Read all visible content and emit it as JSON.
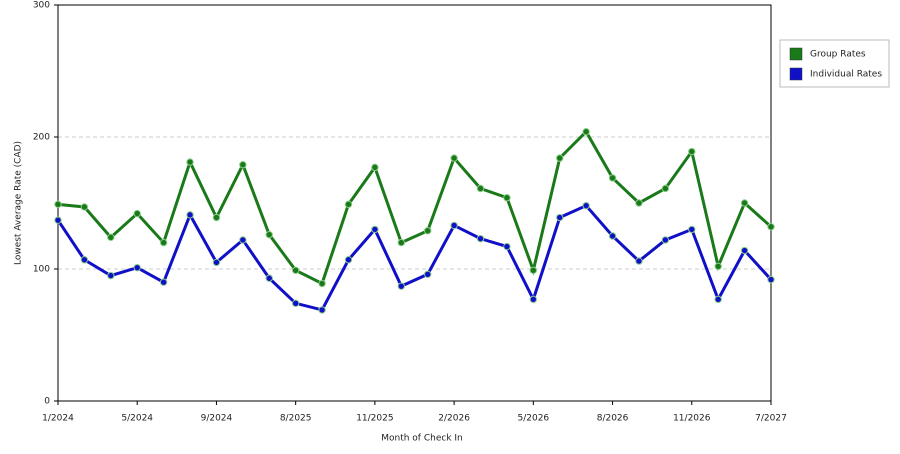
{
  "chart_data": {
    "type": "line",
    "xlabel": "Month of Check In",
    "ylabel": "Lowest Average Rate (CAD)",
    "categories": [
      "1/2024",
      null,
      null,
      "5/2024",
      null,
      null,
      "9/2024",
      null,
      null,
      "8/2025",
      null,
      null,
      "11/2025",
      null,
      null,
      "2/2026",
      null,
      null,
      "5/2026",
      null,
      null,
      "8/2026",
      null,
      null,
      "11/2026",
      null,
      null,
      "7/2027"
    ],
    "series": [
      {
        "name": "Group Rates",
        "color": "#1a7a1a",
        "values": [
          149,
          147,
          124,
          142,
          120,
          181,
          139,
          179,
          126,
          99,
          89,
          149,
          177,
          120,
          129,
          184,
          161,
          154,
          99,
          184,
          204,
          169,
          150,
          161,
          189,
          102,
          150,
          132
        ]
      },
      {
        "name": "Individual Rates",
        "color": "#1010c8",
        "values": [
          137,
          107,
          95,
          101,
          90,
          141,
          105,
          122,
          93,
          74,
          69,
          107,
          130,
          87,
          96,
          133,
          123,
          117,
          77,
          139,
          148,
          125,
          106,
          122,
          130,
          77,
          114,
          92
        ]
      }
    ],
    "ylim": [
      0,
      300
    ],
    "yticks": [
      0,
      100,
      200,
      300
    ],
    "grid": true,
    "legend": "right"
  }
}
